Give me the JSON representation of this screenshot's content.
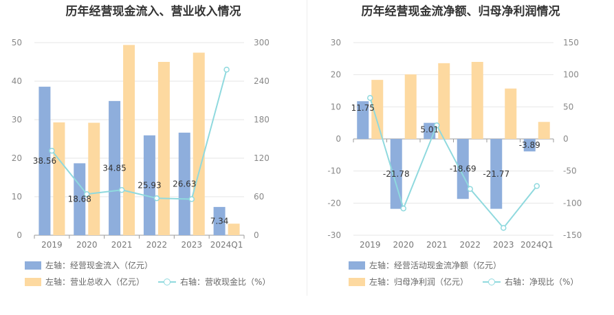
{
  "chart_data": [
    {
      "type": "bar",
      "title": "历年经营现金流入、营业收入情况",
      "categories": [
        "2019",
        "2020",
        "2021",
        "2022",
        "2023",
        "2024Q1"
      ],
      "y_left_ticks": [
        0,
        10,
        20,
        30,
        40,
        50
      ],
      "y_right_ticks": [
        0,
        60,
        120,
        180,
        240,
        300
      ],
      "y_left_range": [
        0,
        50
      ],
      "y_right_range": [
        0,
        300
      ],
      "legend_position": "bottom-left",
      "grid": true,
      "series": [
        {
          "name": "左轴：经营现金流入（亿元）",
          "axis": "left",
          "kind": "bar",
          "color": "#8eaedc",
          "values": [
            38.56,
            18.68,
            34.85,
            25.93,
            26.63,
            7.34
          ],
          "labels": [
            "38.56",
            "18.68",
            "34.85",
            "25.93",
            "26.63",
            "7.34"
          ]
        },
        {
          "name": "左轴：营业总收入（亿元）",
          "axis": "left",
          "kind": "bar",
          "color": "#fdd9a0",
          "values": [
            29.3,
            29.2,
            49.4,
            45.0,
            47.4,
            3.0
          ]
        },
        {
          "name": "右轴：营收现金比（%）",
          "axis": "right",
          "kind": "line",
          "color": "#8fd9de",
          "values": [
            131.6,
            64.0,
            70.5,
            57.6,
            56.2,
            258.0
          ]
        }
      ]
    },
    {
      "type": "bar",
      "title": "历年经营现金流净额、归母净利润情况",
      "categories": [
        "2019",
        "2020",
        "2021",
        "2022",
        "2023",
        "2024Q1"
      ],
      "y_left_ticks": [
        -30,
        -20,
        -10,
        0,
        10,
        20,
        30
      ],
      "y_right_ticks": [
        -150,
        -100,
        -50,
        0,
        50,
        100,
        150
      ],
      "y_left_range": [
        -30,
        30
      ],
      "y_right_range": [
        -150,
        150
      ],
      "legend_position": "bottom-left",
      "grid": true,
      "series": [
        {
          "name": "左轴：经营活动现金流净额（亿元）",
          "axis": "left",
          "kind": "bar",
          "color": "#8eaedc",
          "values": [
            11.75,
            -21.78,
            5.01,
            -18.69,
            -21.77,
            -3.89
          ],
          "labels": [
            "11.75",
            "-21.78",
            "5.01",
            "-18.69",
            "-21.77",
            "-3.89"
          ]
        },
        {
          "name": "左轴：归母净利润（亿元）",
          "axis": "left",
          "kind": "bar",
          "color": "#fdd9a0",
          "values": [
            18.4,
            20.1,
            23.6,
            24.0,
            15.7,
            5.3
          ]
        },
        {
          "name": "右轴：净现比（%）",
          "axis": "right",
          "kind": "line",
          "color": "#8fd9de",
          "values": [
            63.9,
            -108.3,
            21.2,
            -77.9,
            -138.6,
            -73.4
          ]
        }
      ]
    }
  ]
}
